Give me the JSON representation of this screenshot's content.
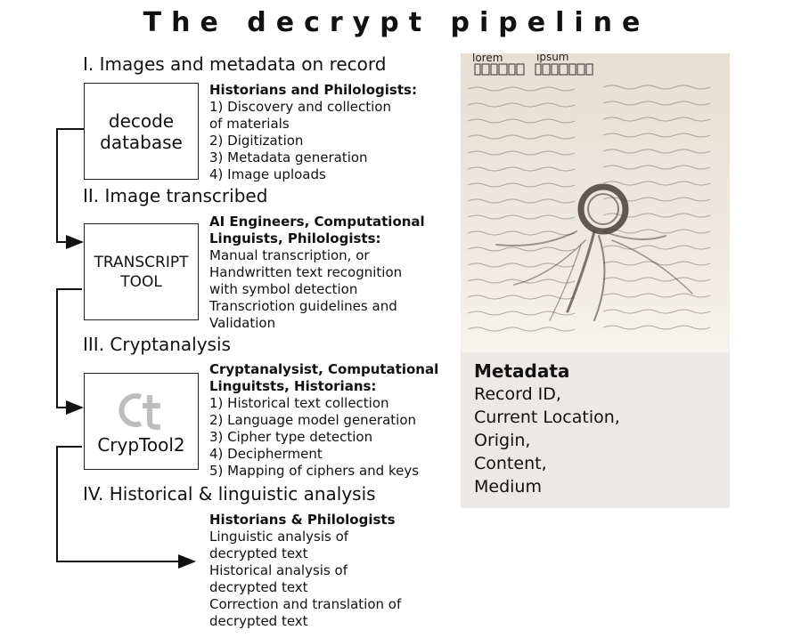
{
  "title": "The decrypt pipeline",
  "sections": [
    {
      "label": "I. Images  and metadata on record"
    },
    {
      "label": "II. Image  transcribed"
    },
    {
      "label": "III. Cryptanalysis"
    },
    {
      "label": "IV. Historical & linguistic analysis"
    }
  ],
  "boxes": [
    {
      "lines": [
        "decode",
        "database"
      ]
    },
    {
      "lines": [
        "TRANSCRIPT",
        "TOOL"
      ]
    },
    {
      "logo": "ct",
      "lines": [
        "CrypTool2"
      ]
    }
  ],
  "descriptions": [
    {
      "head": [
        "Historians and Philologists:"
      ],
      "lines": [
        "1) Discovery and collection",
        "of materials",
        "2) Digitization",
        "3) Metadata generation",
        "4) Image uploads"
      ]
    },
    {
      "head": [
        "AI Engineers, Computational",
        "Linguists, Philologists:"
      ],
      "lines": [
        "Manual transcription, or",
        "Handwritten text recognition",
        "with symbol detection",
        "Transcriotion guidelines and",
        "Validation"
      ]
    },
    {
      "head": [
        "Cryptanalysist, Computational",
        "Linguitsts, Historians:"
      ],
      "lines": [
        "1) Historical text collection",
        "2) Language model generation",
        "3) Cipher type detection",
        "4) Decipherment",
        "5) Mapping of ciphers and keys"
      ]
    },
    {
      "head": [
        "Historians & Philologists"
      ],
      "lines": [
        "Linguistic analysis of",
        "decrypted text",
        "Historical analysis of",
        "decrypted text",
        "Correction and translation of",
        "decrypted text"
      ]
    }
  ],
  "manuscript": {
    "label_left": "lorem",
    "label_right": "ipsum"
  },
  "metadata": {
    "title": "Metadata",
    "items": [
      "Record ID,",
      "Current Location,",
      "Origin,",
      "Content,",
      "Medium"
    ]
  },
  "colors": {
    "line": "#111111",
    "panel": "#ece8e6",
    "paper": "#efe9df",
    "ink": "#5a5248"
  }
}
